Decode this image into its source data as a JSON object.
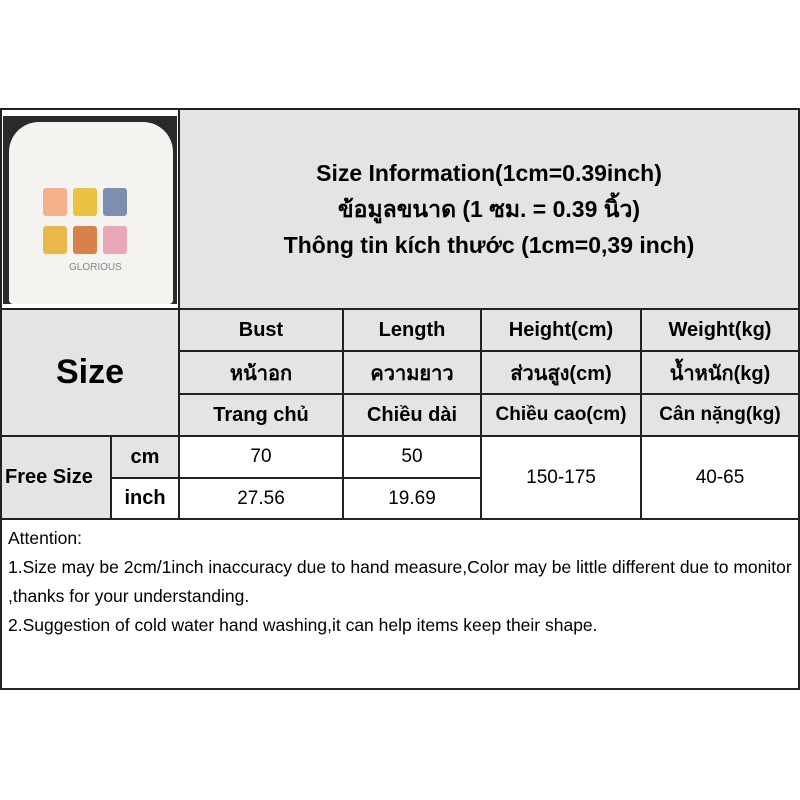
{
  "header": {
    "line1": "Size Information(1cm=0.39inch)",
    "line2": "ข้อมูลขนาด (1 ซม. = 0.39 นิ้ว)",
    "line3": "Thông tin kích thước (1cm=0,39 inch)"
  },
  "photo": {
    "print_text": "GLORIOUS"
  },
  "table": {
    "size_label": "Size",
    "columns": [
      {
        "en": "Bust",
        "th": "หน้าอก",
        "vi": "Trang chủ"
      },
      {
        "en": "Length",
        "th": "ความยาว",
        "vi": "Chiều dài"
      },
      {
        "en": "Height(cm)",
        "th": "ส่วนสูง(cm)",
        "vi": "Chiều cao(cm)"
      },
      {
        "en": "Weight(kg)",
        "th": "น้ำหนัก(kg)",
        "vi": "Cân nặng(kg)"
      }
    ],
    "row_label": "Free Size",
    "units": [
      "cm",
      "inch"
    ],
    "bust": [
      "70",
      "27.56"
    ],
    "length": [
      "50",
      "19.69"
    ],
    "height": "150-175",
    "weight": "40-65"
  },
  "attention": {
    "title": "Attention:",
    "line1": "1.Size may be 2cm/1inch inaccuracy due to hand measure,Color may be little different due to monitor ,thanks for your understanding.",
    "line2": "2.Suggestion of cold water hand washing,it can help items keep their shape."
  }
}
